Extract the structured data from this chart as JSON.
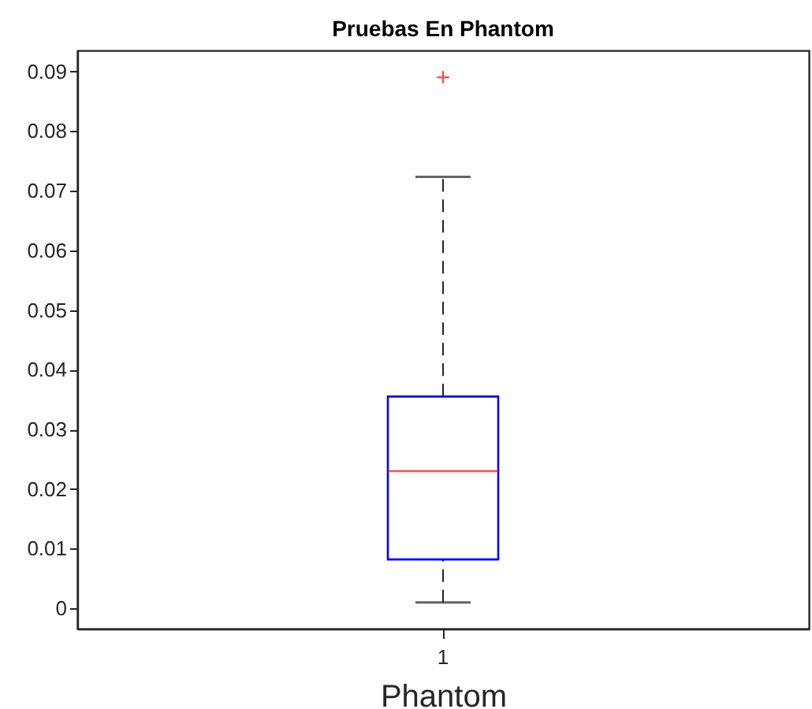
{
  "chart_data": {
    "type": "box",
    "title": "Pruebas En Phantom",
    "xlabel": "Phantom",
    "categories": [
      "1"
    ],
    "color": "#0000ff",
    "boxes": [
      {
        "low": 0.001,
        "q1": 0.0082,
        "median": 0.023,
        "q3": 0.0355,
        "high": 0.0723,
        "outliers": [
          0.089
        ]
      }
    ],
    "ylim": [
      -0.0034,
      0.0935
    ],
    "yticks": [
      0,
      0.01,
      0.02,
      0.03,
      0.04,
      0.05,
      0.06,
      0.07,
      0.08,
      0.09
    ],
    "grid": false
  }
}
